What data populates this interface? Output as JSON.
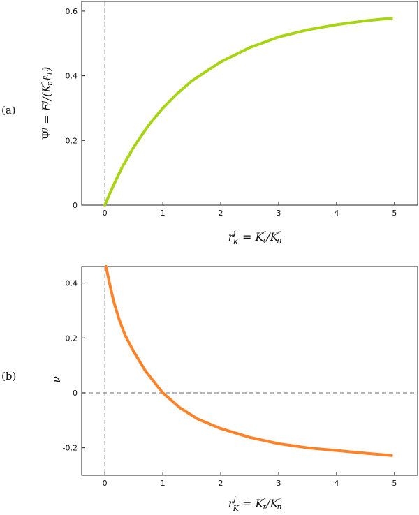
{
  "chart_data": [
    {
      "type": "line",
      "panel_label": "(a)",
      "xlabel": "r_K^j = K_τ''/K_n''",
      "ylabel": "Ψ^j = E^j/(K_n''ℓ_T)",
      "xlim": [
        -0.4,
        5.4
      ],
      "ylim": [
        0,
        0.63
      ],
      "xticks": [
        "0",
        "1",
        "2",
        "3",
        "4",
        "5"
      ],
      "yticks": [
        "0",
        "0.2",
        "0.4",
        "0.6"
      ],
      "guides": {
        "vline_x": 0,
        "hline_y": null
      },
      "series": [
        {
          "color": "#a8d414",
          "x": [
            0,
            0.1,
            0.2,
            0.3,
            0.5,
            0.75,
            1,
            1.25,
            1.5,
            2,
            2.5,
            3,
            3.5,
            4,
            4.5,
            4.95
          ],
          "y": [
            0,
            0.042,
            0.081,
            0.118,
            0.18,
            0.246,
            0.3,
            0.345,
            0.384,
            0.443,
            0.487,
            0.52,
            0.542,
            0.558,
            0.57,
            0.578
          ]
        }
      ]
    },
    {
      "type": "line",
      "panel_label": "(b)",
      "xlabel": "r_K^j = K_τ''/K_n''",
      "ylabel": "ν",
      "xlim": [
        -0.4,
        5.4
      ],
      "ylim": [
        -0.3,
        0.46
      ],
      "xticks": [
        "0",
        "1",
        "2",
        "3",
        "4",
        "5"
      ],
      "yticks": [
        "-0.2",
        "0",
        "0.2",
        "0.4"
      ],
      "guides": {
        "vline_x": 0,
        "hline_y": 0
      },
      "series": [
        {
          "color": "#ff8228",
          "x": [
            0.02,
            0.08,
            0.15,
            0.25,
            0.35,
            0.5,
            0.7,
            1,
            1.3,
            1.6,
            2,
            2.5,
            3,
            3.5,
            4,
            4.5,
            4.95
          ],
          "y": [
            0.46,
            0.4,
            0.335,
            0.265,
            0.21,
            0.15,
            0.08,
            0,
            -0.055,
            -0.095,
            -0.13,
            -0.162,
            -0.185,
            -0.2,
            -0.21,
            -0.22,
            -0.228
          ]
        }
      ]
    }
  ]
}
